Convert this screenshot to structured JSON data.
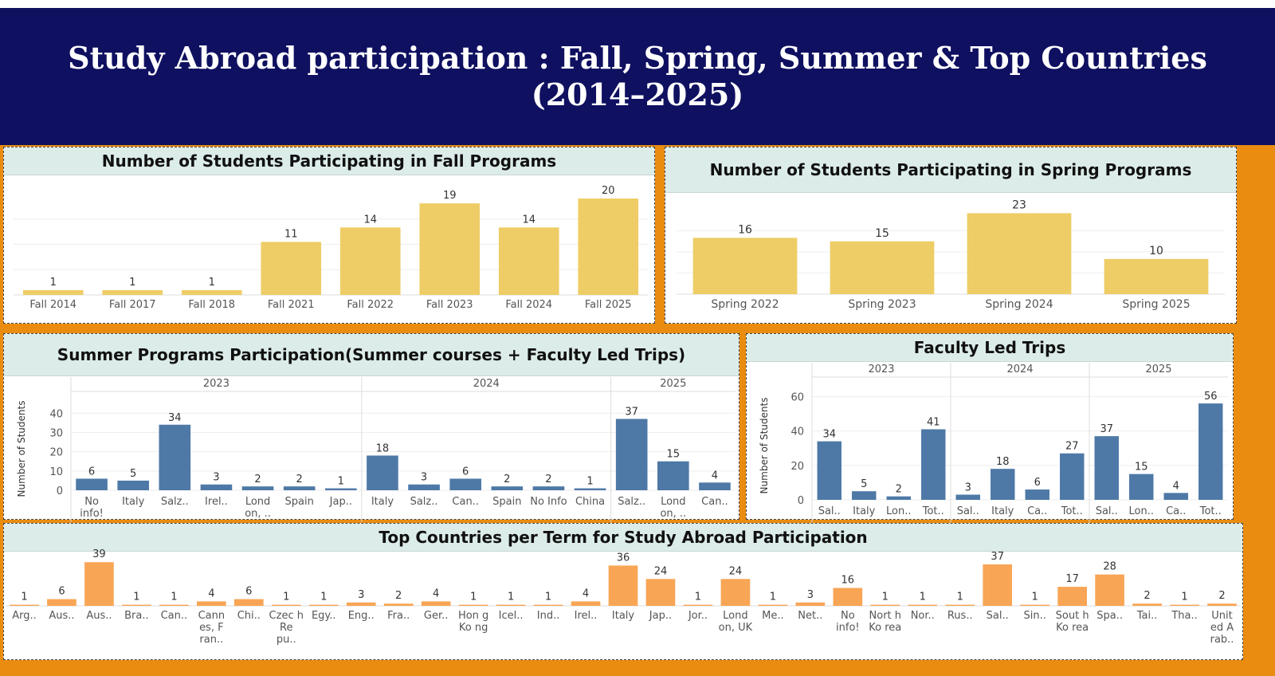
{
  "title": "Study Abroad participation : Fall, Spring, Summer & Top Countries (2014–2025)",
  "colors": {
    "banner": "#0f1060",
    "frame": "#ea8c10",
    "yellow_bars": "#eecd66",
    "blue_bars": "#4e79a7",
    "orange_bars": "#f8a555",
    "title_bg": "#dcece9"
  },
  "chart_data": [
    {
      "id": "fall",
      "type": "bar",
      "title": "Number of Students Participating in Fall Programs",
      "categories": [
        "Fall 2014",
        "Fall 2017",
        "Fall 2018",
        "Fall 2021",
        "Fall 2022",
        "Fall 2023",
        "Fall 2024",
        "Fall 2025"
      ],
      "values": [
        1,
        1,
        1,
        11,
        14,
        19,
        14,
        20
      ],
      "ylim": [
        0,
        21
      ],
      "grid": true
    },
    {
      "id": "spring",
      "type": "bar",
      "title": "Number of Students Participating in Spring Programs",
      "categories": [
        "Spring 2022",
        "Spring 2023",
        "Spring 2024",
        "Spring 2025"
      ],
      "values": [
        16,
        15,
        23,
        10
      ],
      "ylim": [
        0,
        24
      ],
      "grid": true
    },
    {
      "id": "summer",
      "type": "bar",
      "title": "Summer Programs Participation(Summer courses + Faculty Led Trips)",
      "ylabel": "Number of Students",
      "yticks": [
        0,
        10,
        20,
        30,
        40
      ],
      "ylim": [
        0,
        43
      ],
      "groups": [
        {
          "name": "2023",
          "categories": [
            "No info!",
            "Italy",
            "Salz..",
            "Irel..",
            "Lond on, ..",
            "Spain",
            "Jap.."
          ],
          "values": [
            6,
            5,
            34,
            3,
            2,
            2,
            1
          ]
        },
        {
          "name": "2024",
          "categories": [
            "Italy",
            "Salz..",
            "Can..",
            "Spain",
            "No Info",
            "China"
          ],
          "values": [
            18,
            3,
            6,
            2,
            2,
            1
          ]
        },
        {
          "name": "2025",
          "categories": [
            "Salz..",
            "Lond on, ..",
            "Can.."
          ],
          "values": [
            37,
            15,
            4
          ]
        }
      ]
    },
    {
      "id": "faculty",
      "type": "bar",
      "title": "Faculty Led Trips",
      "ylabel": "Number of Students",
      "yticks": [
        0,
        20,
        40,
        60
      ],
      "ylim": [
        0,
        63
      ],
      "groups": [
        {
          "name": "2023",
          "categories": [
            "Sal..",
            "Italy",
            "Lon..",
            "Tot.."
          ],
          "values": [
            34,
            5,
            2,
            41
          ]
        },
        {
          "name": "2024",
          "categories": [
            "Sal..",
            "Italy",
            "Ca..",
            "Tot.."
          ],
          "values": [
            3,
            18,
            6,
            27
          ]
        },
        {
          "name": "2025",
          "categories": [
            "Sal..",
            "Lon..",
            "Ca..",
            "Tot.."
          ],
          "values": [
            37,
            15,
            4,
            56
          ]
        }
      ]
    },
    {
      "id": "top",
      "type": "bar",
      "title": "Top Countries per Term for Study Abroad Participation",
      "categories": [
        "Arg..",
        "Aus..",
        "Aus..",
        "Bra..",
        "Can..",
        "Cann es, F ran..",
        "Chi..",
        "Czec h Re pu..",
        "Egy..",
        "Eng..",
        "Fra..",
        "Ger..",
        "Hon g Ko ng",
        "Icel..",
        "Ind..",
        "Irel..",
        "Italy",
        "Jap..",
        "Jor..",
        "Lond on, UK",
        "Me..",
        "Net..",
        "No info!",
        "Nort h Ko rea",
        "Nor..",
        "Rus..",
        "Sal..",
        "Sin..",
        "Sout h Ko rea",
        "Spa..",
        "Tai..",
        "Tha..",
        "Unit ed A rab.."
      ],
      "values": [
        1,
        6,
        39,
        1,
        1,
        4,
        6,
        1,
        1,
        3,
        2,
        4,
        1,
        1,
        1,
        4,
        36,
        24,
        1,
        24,
        1,
        3,
        16,
        1,
        1,
        1,
        37,
        1,
        17,
        28,
        2,
        1,
        2
      ],
      "ylim": [
        0,
        42
      ]
    }
  ]
}
